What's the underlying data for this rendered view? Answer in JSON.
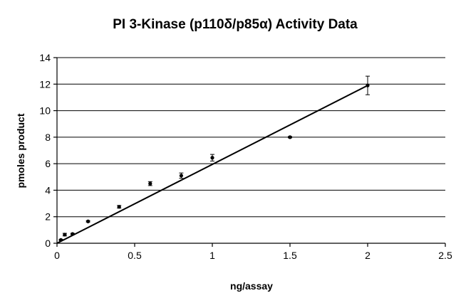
{
  "chart_data": {
    "type": "scatter",
    "title": "PI 3-Kinase (p110δ/p85α) Activity Data",
    "xlabel": "ng/assay",
    "ylabel": "pmoles product",
    "xlim": [
      0,
      2.5
    ],
    "ylim": [
      0,
      14
    ],
    "x_ticks": [
      "0",
      "0.5",
      "1",
      "1.5",
      "2",
      "2.5"
    ],
    "y_ticks": [
      "0",
      "2",
      "4",
      "6",
      "8",
      "10",
      "12",
      "14"
    ],
    "grid": "horizontal",
    "legend": "none",
    "points": [
      {
        "x": 0.025,
        "y": 0.25,
        "err": 0.05
      },
      {
        "x": 0.05,
        "y": 0.65,
        "err": 0.1
      },
      {
        "x": 0.1,
        "y": 0.7,
        "err": 0.05
      },
      {
        "x": 0.2,
        "y": 1.65,
        "err": 0.05
      },
      {
        "x": 0.4,
        "y": 2.75,
        "err": 0.1
      },
      {
        "x": 0.6,
        "y": 4.5,
        "err": 0.15
      },
      {
        "x": 0.8,
        "y": 5.1,
        "err": 0.2
      },
      {
        "x": 1.0,
        "y": 6.45,
        "err": 0.25
      },
      {
        "x": 1.5,
        "y": 8.0,
        "err": 0.05
      },
      {
        "x": 2.0,
        "y": 11.9,
        "err": 0.7
      }
    ],
    "trendline": {
      "x": [
        0,
        2.0
      ],
      "y": [
        0,
        11.9
      ]
    }
  }
}
